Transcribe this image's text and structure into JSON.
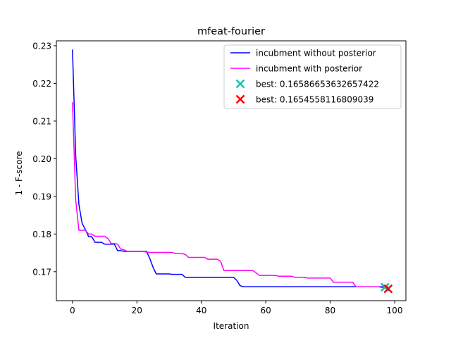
{
  "chart_data": {
    "type": "line",
    "title": "mfeat-fourier",
    "xlabel": "Iteration",
    "ylabel": "1 - F-score",
    "xlim": [
      -5,
      103.5
    ],
    "ylim": [
      0.1623,
      0.2313
    ],
    "xticks": [
      0,
      20,
      40,
      60,
      80,
      100
    ],
    "xtick_labels": [
      "0",
      "20",
      "40",
      "60",
      "80",
      "100"
    ],
    "yticks": [
      0.17,
      0.18,
      0.19,
      0.2,
      0.21,
      0.22,
      0.23
    ],
    "ytick_labels": [
      "0.17",
      "0.18",
      "0.19",
      "0.20",
      "0.21",
      "0.22",
      "0.23"
    ],
    "legend_position": "top-right",
    "series": [
      {
        "name": "incubment without posterior",
        "color": "#0000ff",
        "kind": "line",
        "points": [
          [
            0,
            0.229
          ],
          [
            1,
            0.2008
          ],
          [
            2,
            0.1878
          ],
          [
            3,
            0.1828
          ],
          [
            4,
            0.1812
          ],
          [
            5,
            0.1793
          ],
          [
            6,
            0.1793
          ],
          [
            7,
            0.1778
          ],
          [
            8,
            0.1778
          ],
          [
            9,
            0.1778
          ],
          [
            10,
            0.1773
          ],
          [
            11,
            0.1773
          ],
          [
            12,
            0.1773
          ],
          [
            13,
            0.1773
          ],
          [
            14,
            0.1756
          ],
          [
            15,
            0.1756
          ],
          [
            16,
            0.1754
          ],
          [
            17,
            0.1754
          ],
          [
            18,
            0.1754
          ],
          [
            19,
            0.1754
          ],
          [
            20,
            0.1754
          ],
          [
            21,
            0.1754
          ],
          [
            22,
            0.1754
          ],
          [
            23,
            0.1754
          ],
          [
            24,
            0.1735
          ],
          [
            25,
            0.1712
          ],
          [
            26,
            0.1694
          ],
          [
            27,
            0.1694
          ],
          [
            28,
            0.1694
          ],
          [
            29,
            0.1694
          ],
          [
            30,
            0.1694
          ],
          [
            31,
            0.1693
          ],
          [
            32,
            0.1693
          ],
          [
            33,
            0.1693
          ],
          [
            34,
            0.1693
          ],
          [
            35,
            0.1685
          ],
          [
            36,
            0.1685
          ],
          [
            40,
            0.1685
          ],
          [
            45,
            0.1685
          ],
          [
            50,
            0.1685
          ],
          [
            51,
            0.1677
          ],
          [
            52,
            0.1663
          ],
          [
            53,
            0.166
          ],
          [
            60,
            0.166
          ],
          [
            70,
            0.166
          ],
          [
            80,
            0.166
          ],
          [
            90,
            0.166
          ],
          [
            98,
            0.166
          ]
        ]
      },
      {
        "name": "incubment with posterior",
        "color": "#ff00ff",
        "kind": "line",
        "points": [
          [
            0,
            0.215
          ],
          [
            1,
            0.189
          ],
          [
            2,
            0.181
          ],
          [
            3,
            0.181
          ],
          [
            4,
            0.181
          ],
          [
            5,
            0.18
          ],
          [
            6,
            0.18
          ],
          [
            7,
            0.1794
          ],
          [
            8,
            0.1794
          ],
          [
            9,
            0.1794
          ],
          [
            10,
            0.1794
          ],
          [
            11,
            0.1788
          ],
          [
            12,
            0.1775
          ],
          [
            13,
            0.1775
          ],
          [
            14,
            0.1773
          ],
          [
            15,
            0.176
          ],
          [
            16,
            0.1758
          ],
          [
            17,
            0.1754
          ],
          [
            18,
            0.1754
          ],
          [
            20,
            0.1754
          ],
          [
            22,
            0.1754
          ],
          [
            23,
            0.1752
          ],
          [
            24,
            0.1751
          ],
          [
            28,
            0.1751
          ],
          [
            31,
            0.1751
          ],
          [
            32,
            0.1748
          ],
          [
            34,
            0.1748
          ],
          [
            35,
            0.1746
          ],
          [
            36,
            0.1738
          ],
          [
            40,
            0.1738
          ],
          [
            41,
            0.1738
          ],
          [
            42,
            0.1733
          ],
          [
            45,
            0.1733
          ],
          [
            46,
            0.1727
          ],
          [
            47,
            0.1703
          ],
          [
            50,
            0.1703
          ],
          [
            56,
            0.1703
          ],
          [
            57,
            0.1697
          ],
          [
            58,
            0.169
          ],
          [
            63,
            0.169
          ],
          [
            64,
            0.1688
          ],
          [
            68,
            0.1688
          ],
          [
            69,
            0.1685
          ],
          [
            72,
            0.1685
          ],
          [
            73,
            0.1683
          ],
          [
            80,
            0.1683
          ],
          [
            81,
            0.1672
          ],
          [
            87,
            0.1672
          ],
          [
            88,
            0.166
          ],
          [
            92,
            0.166
          ],
          [
            95,
            0.166
          ],
          [
            96,
            0.1658
          ],
          [
            98,
            0.1655
          ]
        ]
      }
    ],
    "markers": [
      {
        "name": "best: 0.16586653632657422",
        "color": "#1abfae",
        "x": 97,
        "y": 0.16586653632657422
      },
      {
        "name": "best: 0.1654558116809039",
        "color": "#ff0000",
        "x": 98,
        "y": 0.1654558116809039
      }
    ]
  }
}
